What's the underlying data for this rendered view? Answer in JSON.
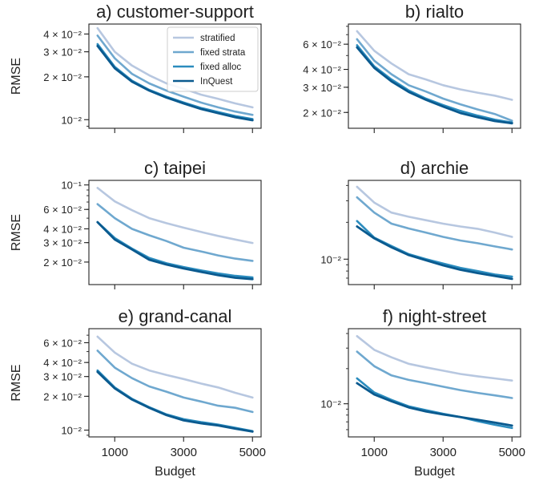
{
  "colors": {
    "stratified": "#b7c7e0",
    "fixed strata": "#6fa8cf",
    "fixed alloc": "#2b8cbe",
    "InQuest": "#0a5a8f",
    "axis": "#222222"
  },
  "labels": {
    "ylabel": "RMSE",
    "xlabel": "Budget"
  },
  "chart_data": [
    {
      "type": "line",
      "title": "a) customer-support",
      "xlabel": "",
      "ylabel": "RMSE",
      "yscale": "log",
      "ylim": [
        0.0087,
        0.047
      ],
      "xlim": [
        250,
        5250
      ],
      "xticks": [
        1000,
        3000,
        5000
      ],
      "xticklabels": [],
      "yticks": [
        0.04,
        0.03,
        0.02,
        0.01
      ],
      "yticklabels": [
        "4 × 10⁻²",
        "3 × 10⁻²",
        "2 × 10⁻²",
        "10⁻²"
      ],
      "legend": "top-right",
      "legend_entries": [
        "stratified",
        "fixed strata",
        "fixed alloc",
        "InQuest"
      ],
      "x": [
        500,
        1000,
        1500,
        2000,
        2500,
        3000,
        3500,
        4000,
        4500,
        5000
      ],
      "series": [
        {
          "name": "stratified",
          "values": [
            0.044,
            0.03,
            0.024,
            0.0205,
            0.018,
            0.0165,
            0.015,
            0.014,
            0.013,
            0.0122
          ]
        },
        {
          "name": "fixed strata",
          "values": [
            0.039,
            0.027,
            0.021,
            0.018,
            0.016,
            0.0145,
            0.0132,
            0.0122,
            0.0114,
            0.0108
          ]
        },
        {
          "name": "fixed alloc",
          "values": [
            0.034,
            0.0235,
            0.0188,
            0.0162,
            0.0145,
            0.0132,
            0.0121,
            0.0113,
            0.0106,
            0.0101
          ]
        },
        {
          "name": "InQuest",
          "values": [
            0.033,
            0.023,
            0.0185,
            0.016,
            0.0143,
            0.013,
            0.0119,
            0.0111,
            0.0104,
            0.0099
          ]
        }
      ]
    },
    {
      "type": "line",
      "title": "b) rialto",
      "xlabel": "",
      "ylabel": "",
      "yscale": "log",
      "ylim": [
        0.0155,
        0.083
      ],
      "xlim": [
        250,
        5250
      ],
      "xticks": [
        1000,
        3000,
        5000
      ],
      "xticklabels": [],
      "yticks": [
        0.06,
        0.04,
        0.03,
        0.02
      ],
      "yticklabels": [
        "6 × 10⁻²",
        "4 × 10⁻²",
        "3 × 10⁻²",
        "2 × 10⁻²"
      ],
      "x": [
        500,
        1000,
        1500,
        2000,
        2500,
        3000,
        3500,
        4000,
        4500,
        5000
      ],
      "series": [
        {
          "name": "stratified",
          "values": [
            0.074,
            0.054,
            0.044,
            0.037,
            0.034,
            0.031,
            0.029,
            0.0275,
            0.0262,
            0.0245
          ]
        },
        {
          "name": "fixed strata",
          "values": [
            0.065,
            0.046,
            0.037,
            0.031,
            0.028,
            0.025,
            0.0228,
            0.021,
            0.0195,
            0.0175
          ]
        },
        {
          "name": "fixed alloc",
          "values": [
            0.059,
            0.042,
            0.034,
            0.0285,
            0.025,
            0.0225,
            0.0205,
            0.019,
            0.0178,
            0.017
          ]
        },
        {
          "name": "InQuest",
          "values": [
            0.057,
            0.041,
            0.033,
            0.0278,
            0.0245,
            0.022,
            0.0198,
            0.0185,
            0.0174,
            0.0168
          ]
        }
      ]
    },
    {
      "type": "line",
      "title": "c) taipei",
      "xlabel": "",
      "ylabel": "RMSE",
      "yscale": "log",
      "ylim": [
        0.0125,
        0.11
      ],
      "xlim": [
        250,
        5250
      ],
      "xticks": [
        1000,
        3000,
        5000
      ],
      "xticklabels": [],
      "yticks": [
        0.1,
        0.06,
        0.04,
        0.03,
        0.02
      ],
      "yticklabels": [
        "10⁻¹",
        "6 × 10⁻²",
        "4 × 10⁻²",
        "3 × 10⁻²",
        "2 × 10⁻²"
      ],
      "x": [
        500,
        1000,
        1500,
        2000,
        2500,
        3000,
        3500,
        4000,
        4500,
        5000
      ],
      "series": [
        {
          "name": "stratified",
          "values": [
            0.094,
            0.071,
            0.059,
            0.05,
            0.045,
            0.041,
            0.0375,
            0.0345,
            0.032,
            0.0298
          ]
        },
        {
          "name": "fixed strata",
          "values": [
            0.067,
            0.05,
            0.04,
            0.035,
            0.031,
            0.027,
            0.025,
            0.023,
            0.0215,
            0.0205
          ]
        },
        {
          "name": "fixed alloc",
          "values": [
            0.046,
            0.033,
            0.0265,
            0.0218,
            0.0195,
            0.018,
            0.0168,
            0.0158,
            0.015,
            0.0145
          ]
        },
        {
          "name": "InQuest",
          "values": [
            0.046,
            0.032,
            0.026,
            0.021,
            0.019,
            0.0175,
            0.0163,
            0.0152,
            0.0144,
            0.014
          ]
        }
      ]
    },
    {
      "type": "line",
      "title": "d) archie",
      "xlabel": "",
      "ylabel": "",
      "yscale": "log",
      "ylim": [
        0.0062,
        0.044
      ],
      "xlim": [
        250,
        5250
      ],
      "xticks": [
        1000,
        3000,
        5000
      ],
      "xticklabels": [],
      "yticks": [
        0.01
      ],
      "yticklabels": [
        "10⁻²"
      ],
      "x": [
        500,
        1000,
        1500,
        2000,
        2500,
        3000,
        3500,
        4000,
        4500,
        5000
      ],
      "series": [
        {
          "name": "stratified",
          "values": [
            0.039,
            0.029,
            0.024,
            0.0222,
            0.0208,
            0.0195,
            0.0185,
            0.0177,
            0.0165,
            0.0152
          ]
        },
        {
          "name": "fixed strata",
          "values": [
            0.032,
            0.024,
            0.0195,
            0.0178,
            0.0165,
            0.0152,
            0.0142,
            0.0135,
            0.0127,
            0.012
          ]
        },
        {
          "name": "fixed alloc",
          "values": [
            0.0205,
            0.015,
            0.0128,
            0.011,
            0.01,
            0.0092,
            0.0085,
            0.008,
            0.0075,
            0.0072
          ]
        },
        {
          "name": "InQuest",
          "values": [
            0.0185,
            0.0148,
            0.0125,
            0.0108,
            0.0098,
            0.0089,
            0.0082,
            0.0077,
            0.0073,
            0.0069
          ]
        }
      ]
    },
    {
      "type": "line",
      "title": "e) grand-canal",
      "xlabel": "Budget",
      "ylabel": "RMSE",
      "yscale": "log",
      "ylim": [
        0.0087,
        0.08
      ],
      "xlim": [
        250,
        5250
      ],
      "xticks": [
        1000,
        3000,
        5000
      ],
      "xticklabels": [
        "1000",
        "3000",
        "5000"
      ],
      "yticks": [
        0.06,
        0.04,
        0.03,
        0.02,
        0.01
      ],
      "yticklabels": [
        "6 × 10⁻²",
        "4 × 10⁻²",
        "3 × 10⁻²",
        "2 × 10⁻²",
        "10⁻²"
      ],
      "x": [
        500,
        1000,
        1500,
        2000,
        2500,
        3000,
        3500,
        4000,
        4500,
        5000
      ],
      "series": [
        {
          "name": "stratified",
          "values": [
            0.068,
            0.049,
            0.039,
            0.034,
            0.031,
            0.0285,
            0.026,
            0.024,
            0.0215,
            0.0195
          ]
        },
        {
          "name": "fixed strata",
          "values": [
            0.051,
            0.036,
            0.029,
            0.0245,
            0.022,
            0.0195,
            0.018,
            0.0165,
            0.0158,
            0.0145
          ]
        },
        {
          "name": "fixed alloc",
          "values": [
            0.034,
            0.024,
            0.019,
            0.016,
            0.0138,
            0.0125,
            0.0118,
            0.0112,
            0.0105,
            0.0098
          ]
        },
        {
          "name": "InQuest",
          "values": [
            0.033,
            0.0235,
            0.0187,
            0.0158,
            0.0136,
            0.0122,
            0.0115,
            0.011,
            0.0103,
            0.0097
          ]
        }
      ]
    },
    {
      "type": "line",
      "title": "f) night-street",
      "xlabel": "Budget",
      "ylabel": "",
      "yscale": "log",
      "ylim": [
        0.0052,
        0.044
      ],
      "xlim": [
        250,
        5250
      ],
      "xticks": [
        1000,
        3000,
        5000
      ],
      "xticklabels": [
        "1000",
        "3000",
        "5000"
      ],
      "yticks": [
        0.01
      ],
      "yticklabels": [
        "10⁻²"
      ],
      "x": [
        500,
        1000,
        1500,
        2000,
        2500,
        3000,
        3500,
        4000,
        4500,
        5000
      ],
      "series": [
        {
          "name": "stratified",
          "values": [
            0.038,
            0.029,
            0.025,
            0.022,
            0.0205,
            0.0192,
            0.018,
            0.0172,
            0.0165,
            0.0158
          ]
        },
        {
          "name": "fixed strata",
          "values": [
            0.028,
            0.021,
            0.0175,
            0.016,
            0.015,
            0.014,
            0.0131,
            0.0124,
            0.0118,
            0.0112
          ]
        },
        {
          "name": "fixed alloc",
          "values": [
            0.0165,
            0.0125,
            0.0108,
            0.0095,
            0.0088,
            0.0082,
            0.0077,
            0.0071,
            0.0066,
            0.0062
          ]
        },
        {
          "name": "InQuest",
          "values": [
            0.015,
            0.012,
            0.0105,
            0.0093,
            0.0086,
            0.0081,
            0.0077,
            0.0073,
            0.0069,
            0.0065
          ]
        }
      ]
    }
  ]
}
